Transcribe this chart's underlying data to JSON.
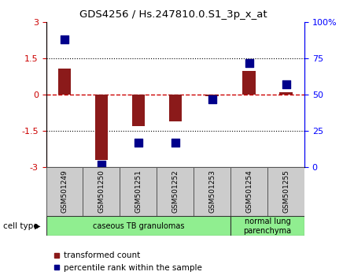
{
  "title": "GDS4256 / Hs.247810.0.S1_3p_x_at",
  "samples": [
    "GSM501249",
    "GSM501250",
    "GSM501251",
    "GSM501252",
    "GSM501253",
    "GSM501254",
    "GSM501255"
  ],
  "transformed_count": [
    1.1,
    -2.7,
    -1.3,
    -1.1,
    -0.05,
    1.0,
    0.1
  ],
  "percentile_rank": [
    88,
    2,
    17,
    17,
    47,
    72,
    57
  ],
  "ylim_left": [
    -3,
    3
  ],
  "ylim_right": [
    0,
    100
  ],
  "yticks_left": [
    -3,
    -1.5,
    0,
    1.5,
    3
  ],
  "yticks_right": [
    0,
    25,
    50,
    75,
    100
  ],
  "ytick_labels_left": [
    "-3",
    "-1.5",
    "0",
    "1.5",
    "3"
  ],
  "ytick_labels_right": [
    "0",
    "25",
    "50",
    "75",
    "100%"
  ],
  "bar_color": "#8B1A1A",
  "dot_color": "#00008B",
  "hline_color": "#cc0000",
  "grid_color": "#333333",
  "cell_type_groups": [
    {
      "label": "caseous TB granulomas",
      "samples": [
        0,
        1,
        2,
        3,
        4
      ],
      "color": "#90EE90"
    },
    {
      "label": "normal lung\nparenchyma",
      "samples": [
        5,
        6
      ],
      "color": "#90EE90"
    }
  ],
  "legend_red_label": "transformed count",
  "legend_blue_label": "percentile rank within the sample",
  "cell_type_label": "cell type",
  "bar_width": 0.35,
  "dot_size": 45
}
